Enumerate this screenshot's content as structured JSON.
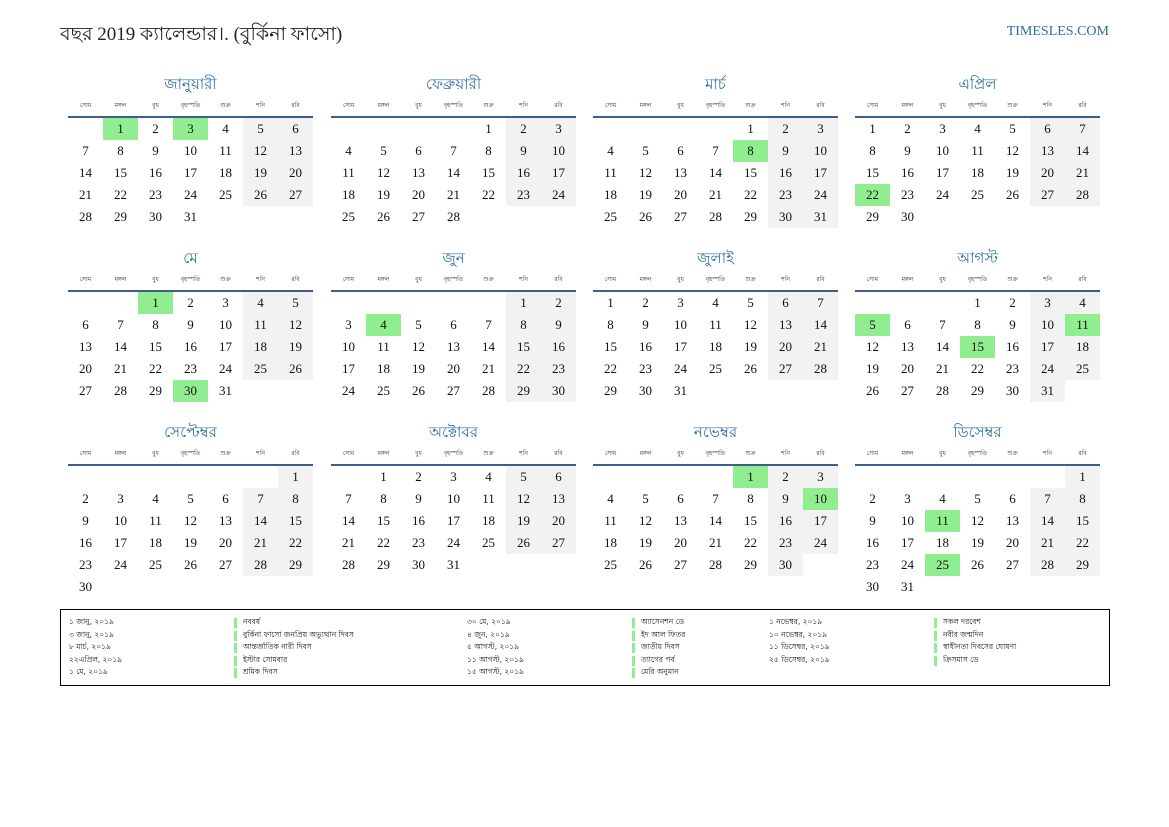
{
  "title": "বছর 2019 ক্যালেন্ডার।. (বুর্কিনা ফাসো)",
  "site": "TIMESLES.COM",
  "weekdays": [
    "সোম",
    "মঙ্গল",
    "বুধ",
    "বৃহস্পতি",
    "শুক্র",
    "শনি",
    "রবি"
  ],
  "colors": {
    "holiday": "#90ee90",
    "weekend": "#f2f2f2",
    "accent": "#2e6da4"
  },
  "months": [
    {
      "name": "জানুয়ারী",
      "start": 1,
      "days": 31,
      "holidays": [
        1,
        3
      ]
    },
    {
      "name": "ফেব্রুয়ারী",
      "start": 4,
      "days": 28,
      "holidays": []
    },
    {
      "name": "মার্চ",
      "start": 4,
      "days": 31,
      "holidays": [
        8
      ]
    },
    {
      "name": "এপ্রিল",
      "start": 0,
      "days": 30,
      "holidays": [
        22
      ]
    },
    {
      "name": "মে",
      "start": 2,
      "days": 31,
      "holidays": [
        1,
        30
      ]
    },
    {
      "name": "জুন",
      "start": 5,
      "days": 30,
      "holidays": [
        4
      ]
    },
    {
      "name": "জুলাই",
      "start": 0,
      "days": 31,
      "holidays": []
    },
    {
      "name": "আগস্ট",
      "start": 3,
      "days": 31,
      "holidays": [
        5,
        11,
        15
      ]
    },
    {
      "name": "সেপ্টেম্বর",
      "start": 6,
      "days": 30,
      "holidays": []
    },
    {
      "name": "অক্টোবর",
      "start": 1,
      "days": 31,
      "holidays": []
    },
    {
      "name": "নভেম্বর",
      "start": 4,
      "days": 30,
      "holidays": [
        1,
        10
      ]
    },
    {
      "name": "ডিসেম্বর",
      "start": 6,
      "days": 31,
      "holidays": [
        11,
        25
      ]
    }
  ],
  "legend": [
    [
      {
        "date": "১ জানু, ২০১৯",
        "name": "নববর্ষ"
      },
      {
        "date": "৩ জানু, ২০১৯",
        "name": "বুর্কিনা ফাসো জনপ্রিয় অভ্যুত্থান দিবস"
      },
      {
        "date": "৮ মার্চ, ২০১৯",
        "name": "আন্তর্জাতিক নারী দিবস"
      },
      {
        "date": "২২এপ্রিল, ২০১৯",
        "name": "ইস্টার সোমবার"
      },
      {
        "date": "১ মে, ২০১৯",
        "name": "শ্রমিক দিবস"
      }
    ],
    [
      {
        "date": "৩০ মে, ২০১৯",
        "name": "অ্যাসেনশন ডে"
      },
      {
        "date": "৪ জুন, ২০১৯",
        "name": "ইদ আল ফিতর"
      },
      {
        "date": "৫ আগস্ট, ২০১৯",
        "name": "জাতীয় দিবস"
      },
      {
        "date": "১১ আগস্ট, ২০১৯",
        "name": "ত্যাগের পর্ব"
      },
      {
        "date": "১৫ আগস্ট, ২০১৯",
        "name": "মেরি অনুমান"
      }
    ],
    [
      {
        "date": "১ নভেম্বর, ২০১৯",
        "name": "সকল দরবেশ"
      },
      {
        "date": "১০ নভেম্বর, ২০১৯",
        "name": "নবীর জন্মদিন"
      },
      {
        "date": "১১ ডিসেম্বর, ২০১৯",
        "name": "স্বাধীনতা দিবসের ঘোষণা"
      },
      {
        "date": "২৫ ডিসেম্বর, ২০১৯",
        "name": "ক্রিসমাস ডে"
      }
    ]
  ]
}
